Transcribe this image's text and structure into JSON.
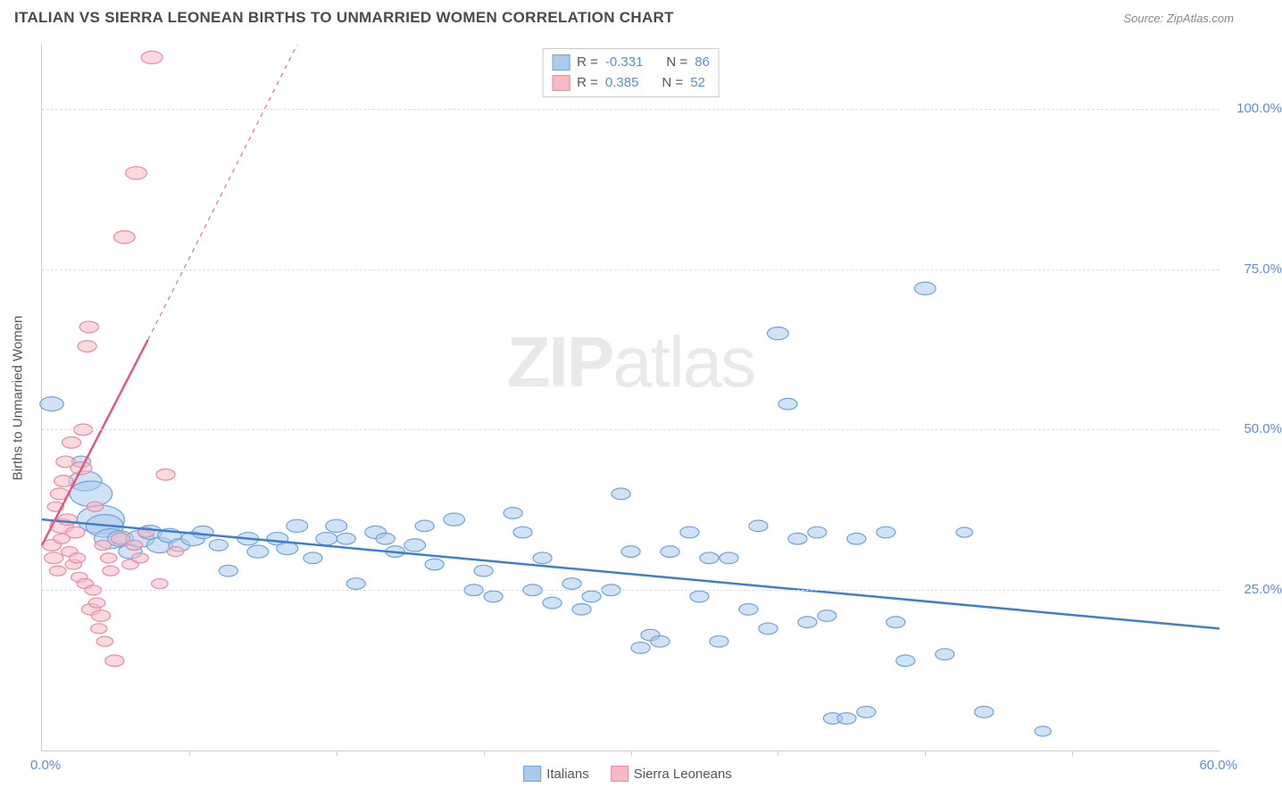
{
  "title": "ITALIAN VS SIERRA LEONEAN BIRTHS TO UNMARRIED WOMEN CORRELATION CHART",
  "source_prefix": "Source: ",
  "source": "ZipAtlas.com",
  "ylabel": "Births to Unmarried Women",
  "watermark_bold": "ZIP",
  "watermark_light": "atlas",
  "chart": {
    "type": "scatter",
    "xlim": [
      0,
      60
    ],
    "ylim": [
      0,
      110
    ],
    "xtick_step": 7.5,
    "y_gridlines": [
      25,
      50,
      75,
      100
    ],
    "y_grid_labels": [
      "25.0%",
      "50.0%",
      "75.0%",
      "100.0%"
    ],
    "x_min_label": "0.0%",
    "x_max_label": "60.0%",
    "grid_color": "#dddddd",
    "axis_color": "#cccccc",
    "label_color": "#5a8fd6",
    "background": "#ffffff",
    "series": [
      {
        "name": "Italians",
        "fill": "#a9cbec",
        "stroke": "#6fa4db",
        "fill_opacity": 0.55,
        "trend": {
          "x1": 0,
          "y1": 36,
          "x2": 60,
          "y2": 19,
          "color": "#3f7fd1",
          "width": 2.5
        },
        "points": [
          [
            0.5,
            54,
            10
          ],
          [
            2,
            45,
            8
          ],
          [
            2.2,
            42,
            14
          ],
          [
            2.5,
            40,
            18
          ],
          [
            3,
            36,
            20
          ],
          [
            3.2,
            35,
            16
          ],
          [
            3.5,
            33,
            14
          ],
          [
            4,
            33,
            11
          ],
          [
            4.5,
            31,
            10
          ],
          [
            5,
            33,
            12
          ],
          [
            5.5,
            34,
            10
          ],
          [
            6,
            32,
            11
          ],
          [
            6.5,
            33.5,
            10
          ],
          [
            7,
            32,
            9
          ],
          [
            7.7,
            33,
            10
          ],
          [
            8.2,
            34,
            9
          ],
          [
            9,
            32,
            8
          ],
          [
            9.5,
            28,
            8
          ],
          [
            10.5,
            33,
            9
          ],
          [
            11,
            31,
            9
          ],
          [
            12,
            33,
            9
          ],
          [
            12.5,
            31.5,
            9
          ],
          [
            13,
            35,
            9
          ],
          [
            13.8,
            30,
            8
          ],
          [
            14.5,
            33,
            9
          ],
          [
            15,
            35,
            9
          ],
          [
            15.5,
            33,
            8
          ],
          [
            16,
            26,
            8
          ],
          [
            17,
            34,
            9
          ],
          [
            17.5,
            33,
            8
          ],
          [
            18,
            31,
            8
          ],
          [
            19,
            32,
            9
          ],
          [
            19.5,
            35,
            8
          ],
          [
            20,
            29,
            8
          ],
          [
            21,
            36,
            9
          ],
          [
            22,
            25,
            8
          ],
          [
            22.5,
            28,
            8
          ],
          [
            23,
            24,
            8
          ],
          [
            24,
            37,
            8
          ],
          [
            24.5,
            34,
            8
          ],
          [
            25,
            25,
            8
          ],
          [
            25.5,
            30,
            8
          ],
          [
            26,
            23,
            8
          ],
          [
            27,
            26,
            8
          ],
          [
            27.5,
            22,
            8
          ],
          [
            28,
            24,
            8
          ],
          [
            29,
            25,
            8
          ],
          [
            29.5,
            40,
            8
          ],
          [
            30,
            31,
            8
          ],
          [
            30.5,
            16,
            8
          ],
          [
            31,
            18,
            8
          ],
          [
            31.5,
            17,
            8
          ],
          [
            32,
            31,
            8
          ],
          [
            33,
            34,
            8
          ],
          [
            33.5,
            24,
            8
          ],
          [
            34,
            30,
            8
          ],
          [
            34.5,
            17,
            8
          ],
          [
            35,
            30,
            8
          ],
          [
            36,
            22,
            8
          ],
          [
            36.5,
            35,
            8
          ],
          [
            37,
            19,
            8
          ],
          [
            37.5,
            65,
            9
          ],
          [
            38,
            54,
            8
          ],
          [
            38.5,
            33,
            8
          ],
          [
            39,
            20,
            8
          ],
          [
            39.5,
            34,
            8
          ],
          [
            40,
            21,
            8
          ],
          [
            40.3,
            5,
            8
          ],
          [
            41,
            5,
            8
          ],
          [
            41.5,
            33,
            8
          ],
          [
            42,
            6,
            8
          ],
          [
            43,
            34,
            8
          ],
          [
            43.5,
            20,
            8
          ],
          [
            44,
            14,
            8
          ],
          [
            45,
            72,
            9
          ],
          [
            46,
            15,
            8
          ],
          [
            48,
            6,
            8
          ],
          [
            51,
            3,
            7
          ],
          [
            47,
            34,
            7
          ]
        ]
      },
      {
        "name": "Sierra Leoneans",
        "fill": "#f7b9c5",
        "stroke": "#ec8aa0",
        "fill_opacity": 0.55,
        "trend_solid": {
          "x1": 0,
          "y1": 32,
          "x2": 5.4,
          "y2": 64,
          "color": "#e15a7e",
          "width": 2.5
        },
        "trend_dash": {
          "x1": 5.4,
          "y1": 64,
          "x2": 13,
          "y2": 110,
          "color": "#e15a7e",
          "width": 1
        },
        "points": [
          [
            0.5,
            32,
            8
          ],
          [
            0.6,
            30,
            8
          ],
          [
            0.7,
            38,
            7
          ],
          [
            0.8,
            28,
            7
          ],
          [
            0.9,
            40,
            8
          ],
          [
            1,
            35,
            10
          ],
          [
            1,
            33,
            7
          ],
          [
            1.1,
            42,
            8
          ],
          [
            1.2,
            45,
            8
          ],
          [
            1.3,
            36,
            8
          ],
          [
            1.4,
            31,
            7
          ],
          [
            1.5,
            48,
            8
          ],
          [
            1.6,
            29,
            7
          ],
          [
            1.7,
            34,
            8
          ],
          [
            1.8,
            30,
            7
          ],
          [
            1.9,
            27,
            7
          ],
          [
            2,
            44,
            9
          ],
          [
            2.1,
            50,
            8
          ],
          [
            2.2,
            26,
            7
          ],
          [
            2.3,
            63,
            8
          ],
          [
            2.4,
            66,
            8
          ],
          [
            2.5,
            22,
            8
          ],
          [
            2.6,
            25,
            7
          ],
          [
            2.7,
            38,
            7
          ],
          [
            2.8,
            23,
            7
          ],
          [
            2.9,
            19,
            7
          ],
          [
            3,
            21,
            8
          ],
          [
            3.1,
            32,
            7
          ],
          [
            3.2,
            17,
            7
          ],
          [
            3.4,
            30,
            7
          ],
          [
            3.5,
            28,
            7
          ],
          [
            3.7,
            14,
            8
          ],
          [
            4,
            33,
            8
          ],
          [
            4.2,
            80,
            9
          ],
          [
            4.5,
            29,
            7
          ],
          [
            4.7,
            32,
            7
          ],
          [
            4.8,
            90,
            9
          ],
          [
            5,
            30,
            7
          ],
          [
            5.3,
            34,
            7
          ],
          [
            5.6,
            108,
            9
          ],
          [
            6,
            26,
            7
          ],
          [
            6.3,
            43,
            8
          ],
          [
            6.8,
            31,
            7
          ]
        ]
      }
    ]
  },
  "stat_legend": [
    {
      "swatch_fill": "#a9cbec",
      "swatch_stroke": "#6fa4db",
      "r_label": "R = ",
      "r_val": "-0.331",
      "n_label": "N = ",
      "n_val": "86"
    },
    {
      "swatch_fill": "#f7b9c5",
      "swatch_stroke": "#ec8aa0",
      "r_label": "R = ",
      "r_val": " 0.385",
      "n_label": "N = ",
      "n_val": "52"
    }
  ],
  "bottom_legend": [
    {
      "fill": "#a9cbec",
      "stroke": "#6fa4db",
      "label": "Italians"
    },
    {
      "fill": "#f7b9c5",
      "stroke": "#ec8aa0",
      "label": "Sierra Leoneans"
    }
  ]
}
